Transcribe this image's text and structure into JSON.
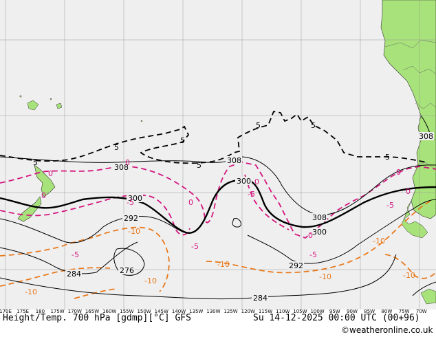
{
  "title": "Height/Temp. 700 hPa [gdmp][°C] GFS",
  "valid_time": "Su 14-12-2025 00:00 UTC (00+96)",
  "credit": "©weatheronline.co.uk",
  "colors": {
    "ocean": "#efefef",
    "land": "#a8e27a",
    "grid": "#9a9a9a",
    "height": "#000000",
    "temp_0": "#d4157e",
    "temp_neg": "#e8791c"
  },
  "longitude_labels": [
    "170E",
    "175E",
    "180",
    "175W",
    "170W",
    "165W",
    "160W",
    "155W",
    "150W",
    "145W",
    "140W",
    "135W",
    "130W",
    "125W",
    "120W",
    "115W",
    "110W",
    "105W",
    "100W",
    "95W",
    "90W",
    "85W",
    "80W",
    "75W",
    "70W"
  ],
  "height_labels": [
    {
      "id": "308-a",
      "text": "308"
    },
    {
      "id": "308-b",
      "text": "308"
    },
    {
      "id": "308-c",
      "text": "308"
    },
    {
      "id": "308-d",
      "text": "308"
    },
    {
      "id": "300-a",
      "text": "300"
    },
    {
      "id": "300-b",
      "text": "300"
    },
    {
      "id": "300-c",
      "text": "300"
    },
    {
      "id": "292-a",
      "text": "292"
    },
    {
      "id": "292-b",
      "text": "292"
    },
    {
      "id": "284-a",
      "text": "284"
    },
    {
      "id": "284-b",
      "text": "284"
    },
    {
      "id": "276",
      "text": "276"
    }
  ],
  "temp5_labels": [
    "5",
    "5",
    "5",
    "5",
    "5",
    "5",
    "5"
  ],
  "temp0_labels": [
    "0",
    "0",
    "0",
    "0",
    "0",
    "0",
    "0",
    "0",
    "-5",
    "-5",
    "-5",
    "-5",
    "-5",
    "-5"
  ],
  "tempneg_labels": [
    "-10",
    "-10",
    "-10",
    "-10",
    "-10",
    "-10",
    "-10"
  ]
}
